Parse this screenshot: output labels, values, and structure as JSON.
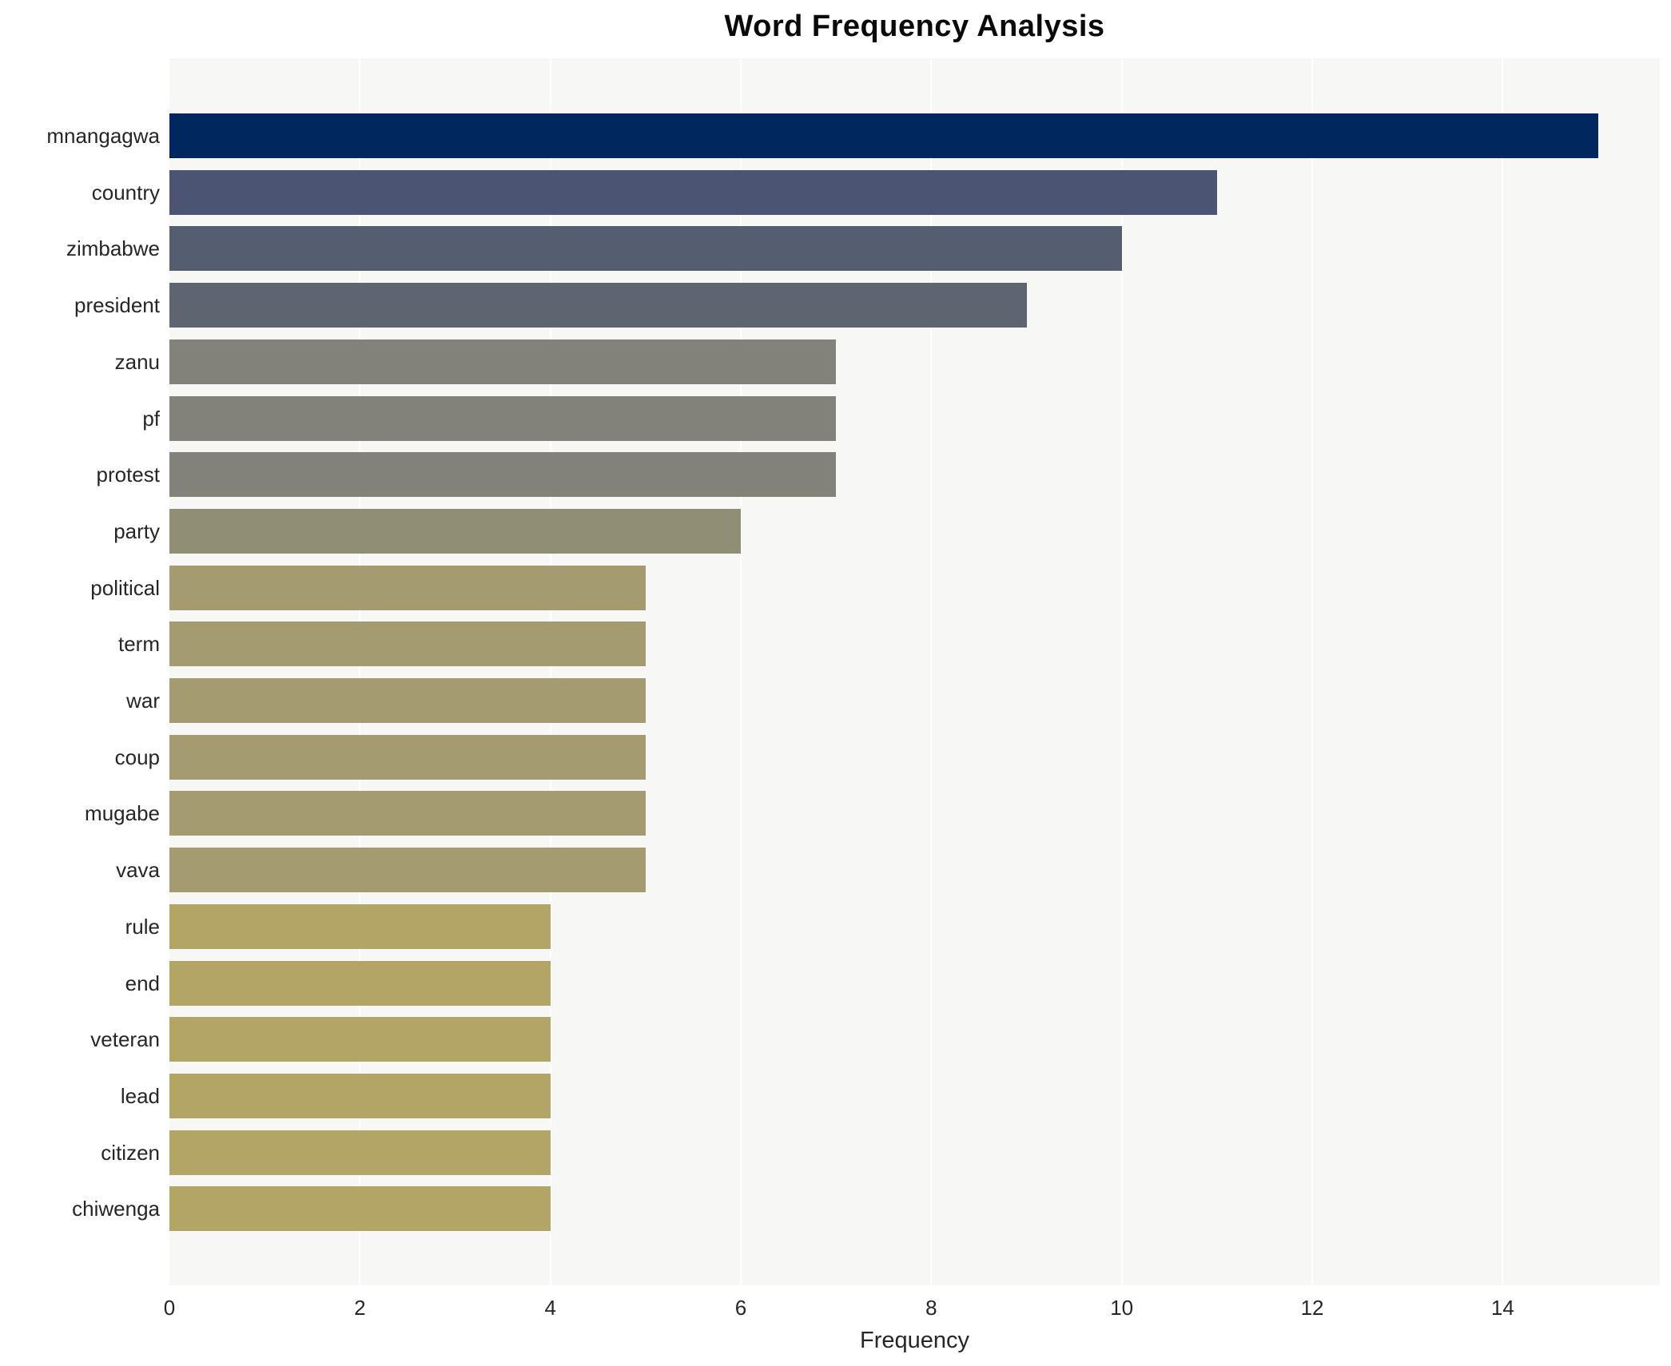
{
  "title": "Word Frequency Analysis",
  "chart_data": {
    "type": "bar",
    "orientation": "horizontal",
    "title": "Word Frequency Analysis",
    "xlabel": "Frequency",
    "ylabel": "",
    "categories": [
      "mnangagwa",
      "country",
      "zimbabwe",
      "president",
      "zanu",
      "pf",
      "protest",
      "party",
      "political",
      "term",
      "war",
      "coup",
      "mugabe",
      "vava",
      "rule",
      "end",
      "veteran",
      "lead",
      "citizen",
      "chiwenga"
    ],
    "values": [
      15,
      11,
      10,
      9,
      7,
      7,
      7,
      6,
      5,
      5,
      5,
      5,
      5,
      5,
      4,
      4,
      4,
      4,
      4,
      4
    ],
    "bar_colors": [
      "#00285e",
      "#4b5573",
      "#555d70",
      "#5f6570",
      "#83827a",
      "#83827a",
      "#83827a",
      "#918e76",
      "#a49c70",
      "#a49c70",
      "#a49c70",
      "#a49c70",
      "#a49c70",
      "#a49c70",
      "#b3a565",
      "#b3a565",
      "#b3a565",
      "#b3a565",
      "#b3a565",
      "#b3a565"
    ],
    "x_ticks": [
      0,
      2,
      4,
      6,
      8,
      10,
      12,
      14
    ],
    "xlim": [
      0,
      15.65
    ],
    "grid": "vertical-white-gridlines",
    "legend": "none",
    "plot_background": "#f7f7f6",
    "figure_background": "#ffffff",
    "tick_label_color": "#262626",
    "title_color": "#0a0a0a"
  }
}
